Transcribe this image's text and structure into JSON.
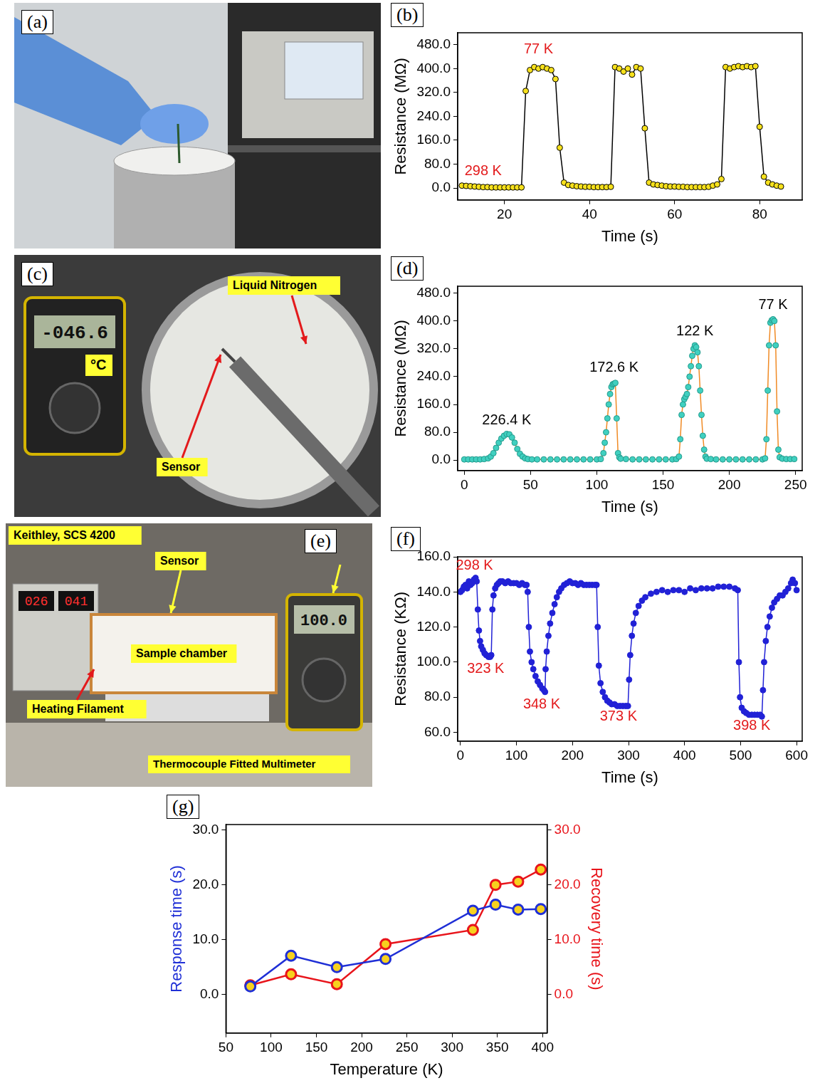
{
  "photos": [
    {
      "panel": "(a)"
    },
    {
      "panel": "(c)",
      "labels": [
        "Liquid Nitrogen",
        "Sensor",
        "°C"
      ],
      "displays": [
        "-046.6"
      ]
    },
    {
      "panel": "(e)",
      "labels": [
        "Keithley, SCS 4200",
        "Sensor",
        "Sample chamber",
        "Heating Filament",
        "Thermocouple Fitted Multimeter"
      ],
      "displays": [
        "026",
        "041",
        "100.0"
      ]
    }
  ],
  "chart_data": [
    {
      "panel": "(b)",
      "type": "line",
      "marker": "circle",
      "line_style": "solid",
      "color": "#f7e11c",
      "grid": false,
      "x_label": "Time (s)",
      "y_label": "Resistance (MΩ)",
      "xlim": [
        9,
        90
      ],
      "xticks": [
        20,
        40,
        60,
        80
      ],
      "ylim": [
        -40,
        520
      ],
      "yticks": [
        {
          "value": 0,
          "label": "0.0"
        },
        {
          "value": 80,
          "label": "80.0"
        },
        {
          "value": 160,
          "label": "160.0"
        },
        {
          "value": 240,
          "label": "240.0"
        },
        {
          "value": 320,
          "label": "320.0"
        },
        {
          "value": 400,
          "label": "400.0"
        },
        {
          "value": 480,
          "label": "480.0"
        }
      ],
      "x": [
        10,
        11,
        12,
        13,
        14,
        15,
        16,
        17,
        18,
        19,
        20,
        21,
        22,
        23,
        24,
        25,
        26,
        27,
        28,
        29,
        30,
        31,
        32,
        33,
        34,
        35,
        36,
        37,
        38,
        39,
        40,
        41,
        42,
        43,
        44,
        45,
        46,
        47,
        48,
        49,
        50,
        51,
        52,
        53,
        54,
        55,
        56,
        57,
        58,
        59,
        60,
        61,
        62,
        63,
        64,
        65,
        66,
        67,
        68,
        69,
        70,
        71,
        72,
        73,
        74,
        75,
        76,
        77,
        78,
        79,
        80,
        81,
        82,
        83,
        84,
        85
      ],
      "values": [
        8,
        7,
        6,
        5,
        4,
        3,
        3,
        2,
        2,
        2,
        2,
        2,
        2,
        2,
        2,
        325,
        395,
        405,
        400,
        405,
        400,
        395,
        365,
        135,
        18,
        10,
        8,
        6,
        5,
        4,
        4,
        3,
        3,
        3,
        3,
        4,
        405,
        400,
        390,
        400,
        380,
        405,
        400,
        200,
        18,
        12,
        10,
        8,
        6,
        5,
        5,
        4,
        4,
        3,
        3,
        3,
        3,
        3,
        4,
        8,
        12,
        30,
        405,
        400,
        405,
        408,
        405,
        408,
        405,
        408,
        205,
        38,
        18,
        12,
        8,
        5
      ],
      "annotations": [
        {
          "text": "77 K",
          "x": 28,
          "y": 465,
          "color": "#e31a1c"
        },
        {
          "text": "298 K",
          "x": 15,
          "y": 55,
          "color": "#e31a1c"
        }
      ]
    },
    {
      "panel": "(d)",
      "type": "line",
      "marker": "circle",
      "line_style": "solid",
      "color": "#40d0c0",
      "grid": false,
      "x_label": "Time (s)",
      "y_label": "Resistance (MΩ)",
      "xlim": [
        -5,
        255
      ],
      "xticks": [
        0,
        50,
        100,
        150,
        200,
        250
      ],
      "ylim": [
        -30,
        500
      ],
      "yticks": [
        {
          "value": 0,
          "label": "0.0"
        },
        {
          "value": 80,
          "label": "80.0"
        },
        {
          "value": 160,
          "label": "160.0"
        },
        {
          "value": 240,
          "label": "240.0"
        },
        {
          "value": 320,
          "label": "320.0"
        },
        {
          "value": 400,
          "label": "400.0"
        },
        {
          "value": 480,
          "label": "480.0"
        }
      ],
      "x": [
        0,
        3,
        6,
        9,
        12,
        15,
        18,
        20,
        22,
        24,
        26,
        28,
        30,
        32,
        34,
        36,
        38,
        40,
        42,
        44,
        46,
        48,
        51,
        55,
        60,
        65,
        70,
        75,
        80,
        85,
        90,
        95,
        100,
        103,
        105,
        106,
        107,
        108,
        109,
        110,
        111,
        112,
        113,
        114,
        115,
        116,
        117,
        118,
        122,
        127,
        132,
        137,
        142,
        147,
        152,
        157,
        160,
        162,
        163,
        164,
        165,
        166,
        167,
        168,
        169,
        170,
        171,
        172,
        173,
        174,
        175,
        176,
        177,
        178,
        179,
        180,
        181,
        182,
        183,
        186,
        190,
        195,
        200,
        205,
        210,
        215,
        220,
        225,
        227,
        228,
        229,
        230,
        231,
        232,
        233,
        234,
        235,
        236,
        237,
        238,
        240,
        243,
        246,
        249
      ],
      "values": [
        2,
        2,
        2,
        2,
        2,
        3,
        5,
        10,
        20,
        35,
        50,
        62,
        70,
        75,
        74,
        65,
        50,
        32,
        18,
        10,
        5,
        3,
        2,
        2,
        2,
        2,
        2,
        2,
        2,
        2,
        2,
        2,
        2,
        3,
        20,
        50,
        80,
        120,
        160,
        190,
        210,
        218,
        220,
        222,
        120,
        20,
        8,
        4,
        3,
        2,
        2,
        2,
        2,
        2,
        2,
        2,
        3,
        10,
        60,
        130,
        160,
        175,
        182,
        190,
        210,
        240,
        270,
        300,
        320,
        330,
        325,
        310,
        270,
        200,
        130,
        70,
        30,
        10,
        4,
        3,
        2,
        2,
        2,
        2,
        2,
        2,
        2,
        2,
        5,
        60,
        200,
        330,
        395,
        402,
        405,
        400,
        330,
        140,
        30,
        8,
        4,
        3,
        3,
        3
      ],
      "annotations": [
        {
          "text": "226.4 K",
          "x": 32,
          "y": 115,
          "color": "#000000"
        },
        {
          "text": "172.6 K",
          "x": 113,
          "y": 265,
          "color": "#000000"
        },
        {
          "text": "122 K",
          "x": 174,
          "y": 370,
          "color": "#000000"
        },
        {
          "text": "77 K",
          "x": 233,
          "y": 445,
          "color": "#000000"
        }
      ]
    },
    {
      "panel": "(f)",
      "type": "line",
      "marker": "circle",
      "line_style": "solid",
      "color": "#2121d6",
      "grid": false,
      "x_label": "Time (s)",
      "y_label": "Resistance (KΩ)",
      "xlim": [
        -5,
        610
      ],
      "xticks": [
        0,
        100,
        200,
        300,
        400,
        500,
        600
      ],
      "ylim": [
        55,
        160
      ],
      "yticks": [
        {
          "value": 60,
          "label": "60.0"
        },
        {
          "value": 80,
          "label": "80.0"
        },
        {
          "value": 100,
          "label": "100.0"
        },
        {
          "value": 120,
          "label": "120.0"
        },
        {
          "value": 140,
          "label": "140.0"
        },
        {
          "value": 160,
          "label": "160.0"
        }
      ],
      "x": [
        0,
        3,
        6,
        9,
        12,
        15,
        18,
        21,
        24,
        27,
        29,
        31,
        33,
        35,
        37,
        40,
        43,
        46,
        50,
        53,
        55,
        57,
        59,
        62,
        65,
        68,
        71,
        75,
        80,
        85,
        90,
        95,
        100,
        105,
        110,
        115,
        118,
        120,
        122,
        124,
        127,
        130,
        134,
        138,
        142,
        146,
        149,
        151,
        152,
        154,
        157,
        160,
        164,
        168,
        172,
        176,
        180,
        185,
        190,
        195,
        200,
        205,
        210,
        215,
        220,
        225,
        230,
        235,
        240,
        243,
        245,
        247,
        250,
        254,
        258,
        262,
        266,
        270,
        275,
        280,
        285,
        290,
        295,
        299,
        301,
        303,
        306,
        309,
        313,
        318,
        324,
        330,
        340,
        350,
        360,
        370,
        380,
        390,
        400,
        410,
        420,
        430,
        440,
        450,
        460,
        470,
        480,
        490,
        495,
        497,
        499,
        502,
        506,
        510,
        515,
        520,
        525,
        530,
        535,
        538,
        540,
        542,
        545,
        548,
        552,
        556,
        560,
        565,
        570,
        575,
        580,
        585,
        590,
        593,
        597,
        600
      ],
      "values": [
        140,
        141,
        143,
        144,
        142,
        146,
        144,
        145,
        147,
        148,
        146,
        130,
        118,
        112,
        109,
        107,
        105,
        104,
        103,
        103,
        104,
        130,
        138,
        142,
        144,
        145,
        146,
        146,
        145,
        146,
        145,
        145,
        145,
        144,
        145,
        144,
        144,
        140,
        120,
        106,
        100,
        96,
        92,
        89,
        87,
        85,
        84,
        83,
        96,
        106,
        115,
        122,
        128,
        133,
        137,
        140,
        142,
        144,
        145,
        146,
        145,
        145,
        144,
        145,
        144,
        144,
        144,
        144,
        144,
        144,
        120,
        98,
        88,
        83,
        80,
        78,
        77,
        76,
        76,
        75,
        75,
        75,
        75,
        75,
        90,
        104,
        115,
        122,
        128,
        132,
        135,
        137,
        139,
        140,
        141,
        140,
        141,
        141,
        140,
        142,
        141,
        142,
        142,
        142,
        143,
        143,
        143,
        142,
        141,
        100,
        80,
        74,
        72,
        71,
        70,
        70,
        70,
        70,
        70,
        69,
        84,
        100,
        112,
        120,
        126,
        131,
        134,
        136,
        138,
        138,
        140,
        142,
        145,
        147,
        145,
        141
      ],
      "annotations": [
        {
          "text": "298 K",
          "x": 25,
          "y": 155,
          "color": "#e31a1c"
        },
        {
          "text": "323 K",
          "x": 45,
          "y": 96,
          "color": "#e31a1c"
        },
        {
          "text": "348 K",
          "x": 145,
          "y": 76,
          "color": "#e31a1c"
        },
        {
          "text": "373 K",
          "x": 282,
          "y": 69,
          "color": "#e31a1c"
        },
        {
          "text": "398 K",
          "x": 520,
          "y": 63.5,
          "color": "#e31a1c"
        }
      ]
    },
    {
      "panel": "(g)",
      "type": "line",
      "marker": "circle",
      "line_style": "solid",
      "grid": false,
      "x_label": "Temperature (K)",
      "y_label": "Response time (s)",
      "y2_label": "Recovery time (s)",
      "xlim": [
        50,
        405
      ],
      "xticks": [
        50,
        100,
        150,
        200,
        250,
        300,
        350,
        400
      ],
      "ylim": [
        -7,
        31
      ],
      "yticks": [
        {
          "value": 0,
          "label": "0.0"
        },
        {
          "value": 10,
          "label": "10.0"
        },
        {
          "value": 20,
          "label": "20.0"
        },
        {
          "value": 30,
          "label": "30.0"
        }
      ],
      "y2lim": [
        -7,
        31
      ],
      "y2ticks": [
        {
          "value": 0,
          "label": "0.0"
        },
        {
          "value": 10,
          "label": "10.0"
        },
        {
          "value": 20,
          "label": "20.0"
        },
        {
          "value": 30,
          "label": "30.0"
        }
      ],
      "x": [
        77,
        122,
        172.6,
        226.4,
        323,
        348,
        373,
        398
      ],
      "series": [
        {
          "color": "#1f2fd6",
          "values": [
            1.5,
            7.1,
            5.0,
            6.5,
            15.3,
            16.4,
            15.5,
            15.6
          ]
        },
        {
          "color": "#e8141b",
          "axis": "y2",
          "values": [
            1.7,
            3.7,
            1.9,
            9.2,
            11.8,
            20.0,
            20.6,
            22.8
          ]
        }
      ]
    }
  ]
}
